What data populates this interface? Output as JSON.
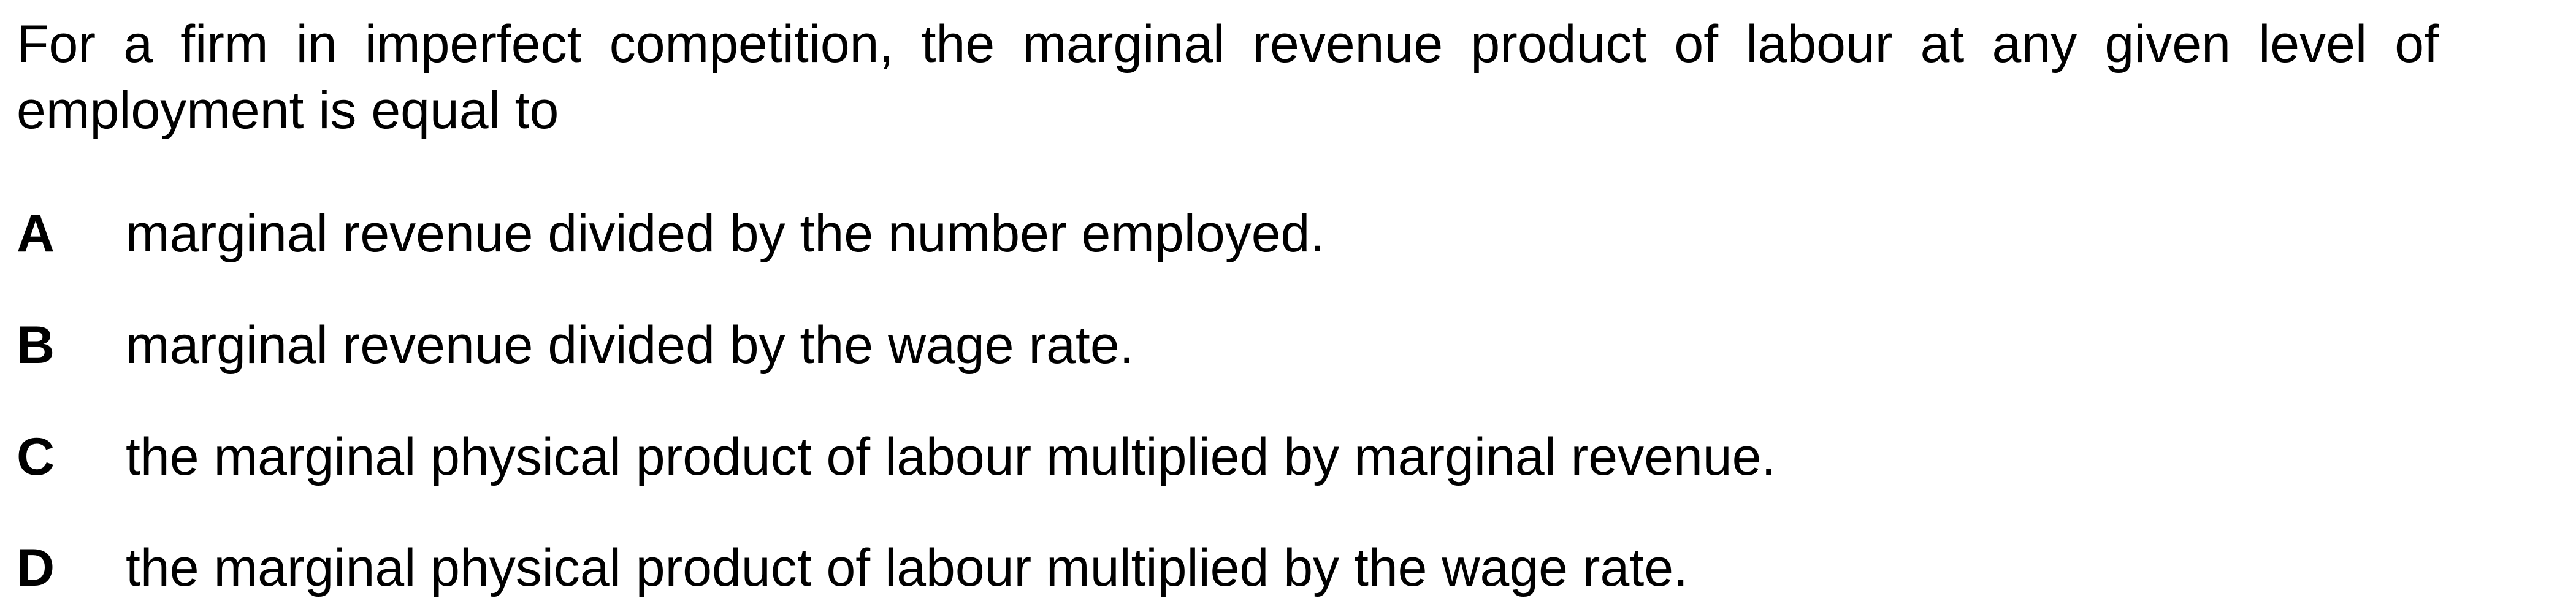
{
  "question": {
    "stem": "For a firm in imperfect competition, the marginal revenue product of labour at any given level of employment is equal to"
  },
  "options": [
    {
      "letter": "A",
      "text": "marginal revenue divided by the number employed."
    },
    {
      "letter": "B",
      "text": "marginal revenue divided by the wage rate."
    },
    {
      "letter": "C",
      "text": "the marginal physical product of labour multiplied by marginal revenue."
    },
    {
      "letter": "D",
      "text": "the marginal physical product of labour multiplied by the wage rate."
    }
  ]
}
